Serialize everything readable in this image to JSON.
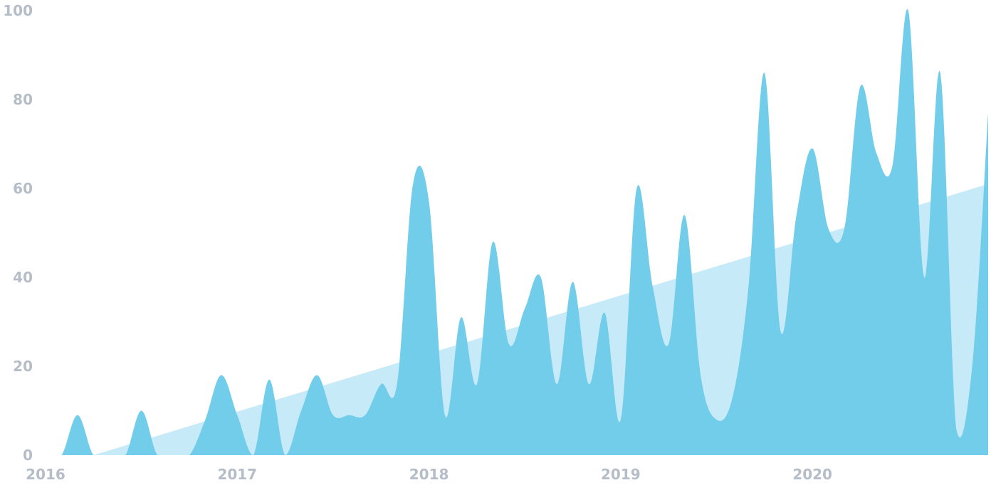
{
  "chart_data": {
    "type": "area",
    "title": "",
    "xlabel": "",
    "ylabel": "",
    "ylim": [
      0,
      100
    ],
    "xlim": [
      "2016-01",
      "2020-12"
    ],
    "grid": false,
    "legend": "none",
    "x_tick_labels": [
      "2016",
      "2017",
      "2018",
      "2019",
      "2020"
    ],
    "y_tick_labels": [
      "0",
      "20",
      "40",
      "60",
      "80",
      "100"
    ],
    "colors": {
      "series": "#72cdea",
      "trend": "#c6eaf7",
      "ticks": "#b4bdc8"
    },
    "series": [
      {
        "x": [
          "2016-01",
          "2016-02",
          "2016-03",
          "2016-04",
          "2016-05",
          "2016-06",
          "2016-07",
          "2016-08",
          "2016-09",
          "2016-10",
          "2016-11",
          "2016-12",
          "2017-01",
          "2017-02",
          "2017-03",
          "2017-04",
          "2017-05",
          "2017-06",
          "2017-07",
          "2017-08",
          "2017-09",
          "2017-10",
          "2017-11",
          "2017-12",
          "2018-01",
          "2018-02",
          "2018-03",
          "2018-04",
          "2018-05",
          "2018-06",
          "2018-07",
          "2018-08",
          "2018-09",
          "2018-10",
          "2018-11",
          "2018-12",
          "2019-01",
          "2019-02",
          "2019-03",
          "2019-04",
          "2019-05",
          "2019-06",
          "2019-07",
          "2019-08",
          "2019-09",
          "2019-10",
          "2019-11",
          "2019-12",
          "2020-01",
          "2020-02",
          "2020-03",
          "2020-04",
          "2020-05",
          "2020-06",
          "2020-07",
          "2020-08",
          "2020-09",
          "2020-10",
          "2020-11",
          "2020-12"
        ],
        "values": [
          0,
          0,
          9,
          0,
          0,
          0,
          10,
          0,
          0,
          0,
          8,
          18,
          9,
          0,
          17,
          0,
          10,
          18,
          9,
          9,
          9,
          16,
          16,
          61,
          57,
          9,
          31,
          16,
          48,
          25,
          33,
          40,
          16,
          39,
          16,
          32,
          8,
          60,
          38,
          25,
          54,
          18,
          8,
          13,
          38,
          86,
          28,
          54,
          69,
          51,
          51,
          83,
          68,
          65,
          100,
          40,
          86,
          6,
          20,
          77
        ]
      },
      {
        "name": "",
        "x": [
          "2016-04",
          "2020-12"
        ],
        "values": [
          0,
          61
        ]
      }
    ]
  }
}
